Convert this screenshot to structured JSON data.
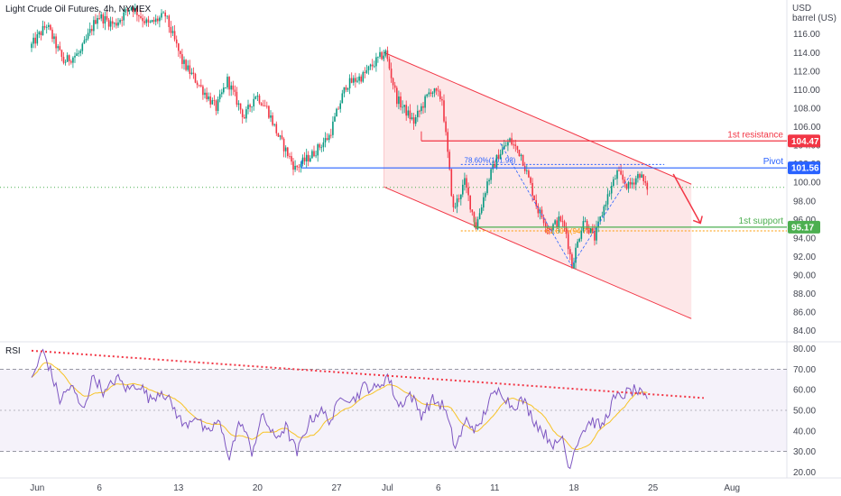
{
  "chart_data": {
    "type": "candlestick",
    "title": "Light Crude Oil Futures, 4h, NYMEX",
    "price_axis": {
      "unit_line1": "USD",
      "unit_line2": "barrel (US)",
      "range": [
        83.0,
        118.5
      ],
      "ticks": [
        "116.00",
        "114.00",
        "112.00",
        "110.00",
        "108.00",
        "106.00",
        "104.00",
        "102.00",
        "100.00",
        "98.00",
        "96.00",
        "94.00",
        "92.00",
        "90.00",
        "88.00",
        "86.00",
        "84.00"
      ]
    },
    "x_axis": {
      "labels": [
        {
          "t": 0.5,
          "label": "Jun"
        },
        {
          "t": 6,
          "label": "6"
        },
        {
          "t": 13,
          "label": "13"
        },
        {
          "t": 20,
          "label": "20"
        },
        {
          "t": 27,
          "label": "27"
        },
        {
          "t": 31.5,
          "label": "Jul"
        },
        {
          "t": 36,
          "label": "6"
        },
        {
          "t": 41,
          "label": "11"
        },
        {
          "t": 48,
          "label": "18"
        },
        {
          "t": 55,
          "label": "25"
        },
        {
          "t": 62,
          "label": "Aug"
        }
      ]
    },
    "price_path": [
      [
        0,
        114.5
      ],
      [
        1.5,
        117
      ],
      [
        3,
        113
      ],
      [
        4.5,
        114
      ],
      [
        6,
        118
      ],
      [
        7.5,
        117
      ],
      [
        9,
        119
      ],
      [
        10.5,
        117
      ],
      [
        12,
        118
      ],
      [
        13.5,
        113
      ],
      [
        15,
        110.5
      ],
      [
        16.5,
        108
      ],
      [
        17.5,
        111
      ],
      [
        19,
        107
      ],
      [
        20,
        109.5
      ],
      [
        21,
        108
      ],
      [
        22,
        105
      ],
      [
        23.5,
        101.5
      ],
      [
        25,
        103
      ],
      [
        26.5,
        105
      ],
      [
        28,
        110.5
      ],
      [
        29.5,
        111.5
      ],
      [
        31,
        113.5
      ],
      [
        31.5,
        114
      ],
      [
        32.5,
        109
      ],
      [
        34,
        106.5
      ],
      [
        35.5,
        110
      ],
      [
        36.5,
        109
      ],
      [
        37,
        103
      ],
      [
        37.5,
        97
      ],
      [
        38.5,
        100
      ],
      [
        39.5,
        95.2
      ],
      [
        40.5,
        100
      ],
      [
        41.5,
        103
      ],
      [
        42.5,
        104.5
      ],
      [
        43.5,
        103
      ],
      [
        45,
        97
      ],
      [
        46,
        95
      ],
      [
        47,
        96
      ],
      [
        47.5,
        94.5
      ],
      [
        48,
        91
      ],
      [
        49,
        96
      ],
      [
        50,
        94
      ],
      [
        51,
        98
      ],
      [
        52,
        101
      ],
      [
        53,
        99.5
      ],
      [
        54,
        101
      ],
      [
        54.5,
        99.5
      ]
    ],
    "channel": {
      "upper": [
        [
          31.2,
          114
        ],
        [
          58.4,
          99.8
        ]
      ],
      "lower": [
        [
          31.2,
          99.5
        ],
        [
          58.4,
          85.3
        ]
      ]
    },
    "levels": [
      {
        "name": "1st resistance",
        "value": 104.47,
        "label": "104.47",
        "color": "#f23645"
      },
      {
        "name": "Pivot",
        "value": 101.56,
        "label": "101.56",
        "color": "#2962ff"
      },
      {
        "name": "1st support",
        "value": 95.17,
        "label": "95.17",
        "color": "#4caf50"
      }
    ],
    "fib_labels": {
      "upper": "78.60%(101.93)",
      "lower": "61.80%(94.77)"
    },
    "current_price": 99.46,
    "rsi": {
      "label": "RSI",
      "range": [
        18,
        82
      ],
      "ticks": [
        "80.00",
        "70.00",
        "60.00",
        "50.00",
        "40.00",
        "30.00",
        "20.00"
      ],
      "band": [
        30,
        70
      ],
      "mid": 50,
      "values": [
        [
          0,
          65
        ],
        [
          1,
          79
        ],
        [
          1.5,
          72
        ],
        [
          2.5,
          55
        ],
        [
          3.5,
          62
        ],
        [
          4.5,
          50
        ],
        [
          5.5,
          67
        ],
        [
          6.5,
          58
        ],
        [
          7.5,
          66
        ],
        [
          8.5,
          60
        ],
        [
          9.5,
          63
        ],
        [
          10.5,
          55
        ],
        [
          11.5,
          60
        ],
        [
          12.5,
          52
        ],
        [
          13.5,
          42
        ],
        [
          14.5,
          48
        ],
        [
          15.5,
          38
        ],
        [
          16.5,
          45
        ],
        [
          17.5,
          28
        ],
        [
          18.5,
          45
        ],
        [
          19.5,
          30
        ],
        [
          20.5,
          48
        ],
        [
          21.5,
          36
        ],
        [
          22.5,
          42
        ],
        [
          23.5,
          29
        ],
        [
          24.5,
          44
        ],
        [
          25.5,
          50
        ],
        [
          26.5,
          45
        ],
        [
          27.5,
          58
        ],
        [
          28.5,
          55
        ],
        [
          29.5,
          62
        ],
        [
          30.5,
          60
        ],
        [
          31.5,
          67
        ],
        [
          32.5,
          52
        ],
        [
          33.5,
          58
        ],
        [
          34.5,
          48
        ],
        [
          35.5,
          55
        ],
        [
          36.5,
          52
        ],
        [
          37.5,
          32
        ],
        [
          38.5,
          45
        ],
        [
          39.5,
          40
        ],
        [
          40.5,
          55
        ],
        [
          41.5,
          60
        ],
        [
          42.5,
          52
        ],
        [
          43.5,
          55
        ],
        [
          44.5,
          45
        ],
        [
          45.5,
          38
        ],
        [
          46.5,
          32
        ],
        [
          47,
          38
        ],
        [
          47.5,
          22
        ],
        [
          48.5,
          38
        ],
        [
          49.5,
          45
        ],
        [
          50.5,
          42
        ],
        [
          51.5,
          55
        ],
        [
          52.5,
          58
        ],
        [
          53.5,
          60
        ],
        [
          54.5,
          54
        ]
      ],
      "trendline": [
        [
          0,
          79
        ],
        [
          59.5,
          56
        ]
      ]
    }
  }
}
